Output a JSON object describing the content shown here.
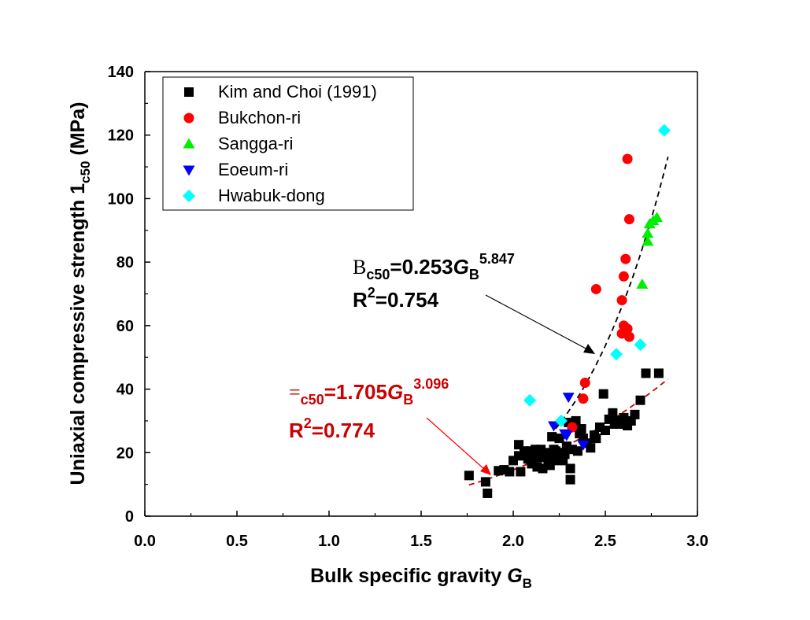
{
  "chart_data": {
    "type": "scatter",
    "xlabel": "Bulk specific gravity ",
    "xlabel_symbol": "G",
    "xlabel_sub": "B",
    "ylabel": "Uniaxial compressive strength ",
    "ylabel_symbol": "1",
    "ylabel_sub": "c50",
    "ylabel_unit": " (MPa)",
    "xlim": [
      0,
      3
    ],
    "ylim": [
      0,
      140
    ],
    "xticks": [
      "0.0",
      "0.5",
      "1.0",
      "1.5",
      "2.0",
      "2.5",
      "3.0"
    ],
    "yticks": [
      "0",
      "20",
      "40",
      "60",
      "80",
      "100",
      "120",
      "140"
    ],
    "legend_position": "top-left",
    "series": [
      {
        "name": "Kim and Choi (1991)",
        "marker": "square",
        "color": "#000000",
        "points": [
          [
            1.76,
            12.8
          ],
          [
            1.85,
            10.8
          ],
          [
            1.86,
            7.2
          ],
          [
            1.92,
            14.3
          ],
          [
            1.95,
            14.6
          ],
          [
            1.98,
            14.0
          ],
          [
            2.0,
            17.5
          ],
          [
            2.03,
            22.5
          ],
          [
            2.03,
            19.0
          ],
          [
            2.04,
            14.0
          ],
          [
            2.06,
            20.5
          ],
          [
            2.08,
            18.0
          ],
          [
            2.09,
            20.5
          ],
          [
            2.1,
            16.5
          ],
          [
            2.11,
            19.0
          ],
          [
            2.12,
            21.0
          ],
          [
            2.13,
            15.5
          ],
          [
            2.14,
            18.5
          ],
          [
            2.15,
            21.0
          ],
          [
            2.16,
            15.0
          ],
          [
            2.18,
            20.0
          ],
          [
            2.19,
            17.5
          ],
          [
            2.2,
            16.0
          ],
          [
            2.21,
            25.0
          ],
          [
            2.22,
            17.5
          ],
          [
            2.22,
            21.0
          ],
          [
            2.23,
            20.5
          ],
          [
            2.24,
            19.5
          ],
          [
            2.25,
            24.5
          ],
          [
            2.26,
            20.0
          ],
          [
            2.27,
            17.5
          ],
          [
            2.28,
            19.5
          ],
          [
            2.29,
            22.0
          ],
          [
            2.3,
            29.5
          ],
          [
            2.31,
            15.0
          ],
          [
            2.31,
            11.5
          ],
          [
            2.32,
            21.0
          ],
          [
            2.33,
            28.5
          ],
          [
            2.34,
            30.0
          ],
          [
            2.35,
            20.5
          ],
          [
            2.36,
            26.0
          ],
          [
            2.37,
            27.5
          ],
          [
            2.38,
            24.5
          ],
          [
            2.4,
            23.0
          ],
          [
            2.42,
            21.5
          ],
          [
            2.44,
            25.5
          ],
          [
            2.45,
            24.5
          ],
          [
            2.47,
            28.0
          ],
          [
            2.49,
            38.5
          ],
          [
            2.5,
            27.0
          ],
          [
            2.52,
            30.5
          ],
          [
            2.54,
            32.5
          ],
          [
            2.55,
            29.0
          ],
          [
            2.57,
            30.0
          ],
          [
            2.58,
            29.0
          ],
          [
            2.6,
            31.0
          ],
          [
            2.62,
            28.5
          ],
          [
            2.64,
            30.0
          ],
          [
            2.66,
            32.0
          ],
          [
            2.69,
            36.5
          ],
          [
            2.72,
            45.0
          ],
          [
            2.79,
            45.0
          ]
        ]
      },
      {
        "name": "Bukchon-ri",
        "marker": "circle",
        "color": "#ff0000",
        "points": [
          [
            2.32,
            28.0
          ],
          [
            2.38,
            37.0
          ],
          [
            2.39,
            42.0
          ],
          [
            2.45,
            71.5
          ],
          [
            2.59,
            68.0
          ],
          [
            2.59,
            57.5
          ],
          [
            2.6,
            60.0
          ],
          [
            2.6,
            75.5
          ],
          [
            2.61,
            81.0
          ],
          [
            2.62,
            59.0
          ],
          [
            2.62,
            112.5
          ],
          [
            2.63,
            93.5
          ],
          [
            2.63,
            56.5
          ]
        ]
      },
      {
        "name": "Sangga-ri",
        "marker": "triangle-up",
        "color": "#00ee00",
        "points": [
          [
            2.7,
            73.0
          ],
          [
            2.73,
            86.5
          ],
          [
            2.73,
            89.0
          ],
          [
            2.74,
            92.0
          ],
          [
            2.76,
            93.0
          ],
          [
            2.78,
            94.0
          ]
        ]
      },
      {
        "name": "Eoeum-ri",
        "marker": "triangle-down",
        "color": "#0000ff",
        "points": [
          [
            2.22,
            28.5
          ],
          [
            2.28,
            26.0
          ],
          [
            2.29,
            25.5
          ],
          [
            2.3,
            37.5
          ],
          [
            2.38,
            22.5
          ]
        ]
      },
      {
        "name": "Hwabuk-dong",
        "marker": "diamond",
        "color": "#00ffff",
        "points": [
          [
            2.09,
            36.5
          ],
          [
            2.26,
            30.0
          ],
          [
            2.56,
            51.0
          ],
          [
            2.69,
            54.0
          ],
          [
            2.82,
            121.5
          ]
        ]
      }
    ],
    "fits": [
      {
        "color": "#000000",
        "a": 0.253,
        "b": 5.847,
        "x_range": [
          2.23,
          2.84
        ],
        "eq_symbol": "B",
        "eq_sub": "c50",
        "eq_mid": "=0.253",
        "eq_var": "G",
        "eq_var_sub": "B",
        "eq_exp": "5.847",
        "r2_text": "R",
        "r2_sup": "2",
        "r2_rest": "=0.754"
      },
      {
        "color": "#cc0000",
        "a": 1.705,
        "b": 3.096,
        "x_range": [
          1.76,
          2.84
        ],
        "eq_symbol": "=",
        "eq_sub": "c50",
        "eq_mid": "=1.705",
        "eq_var": "G",
        "eq_var_sub": "B",
        "eq_exp": "3.096",
        "r2_text": "R",
        "r2_sup": "2",
        "r2_rest": "=0.774"
      }
    ]
  }
}
